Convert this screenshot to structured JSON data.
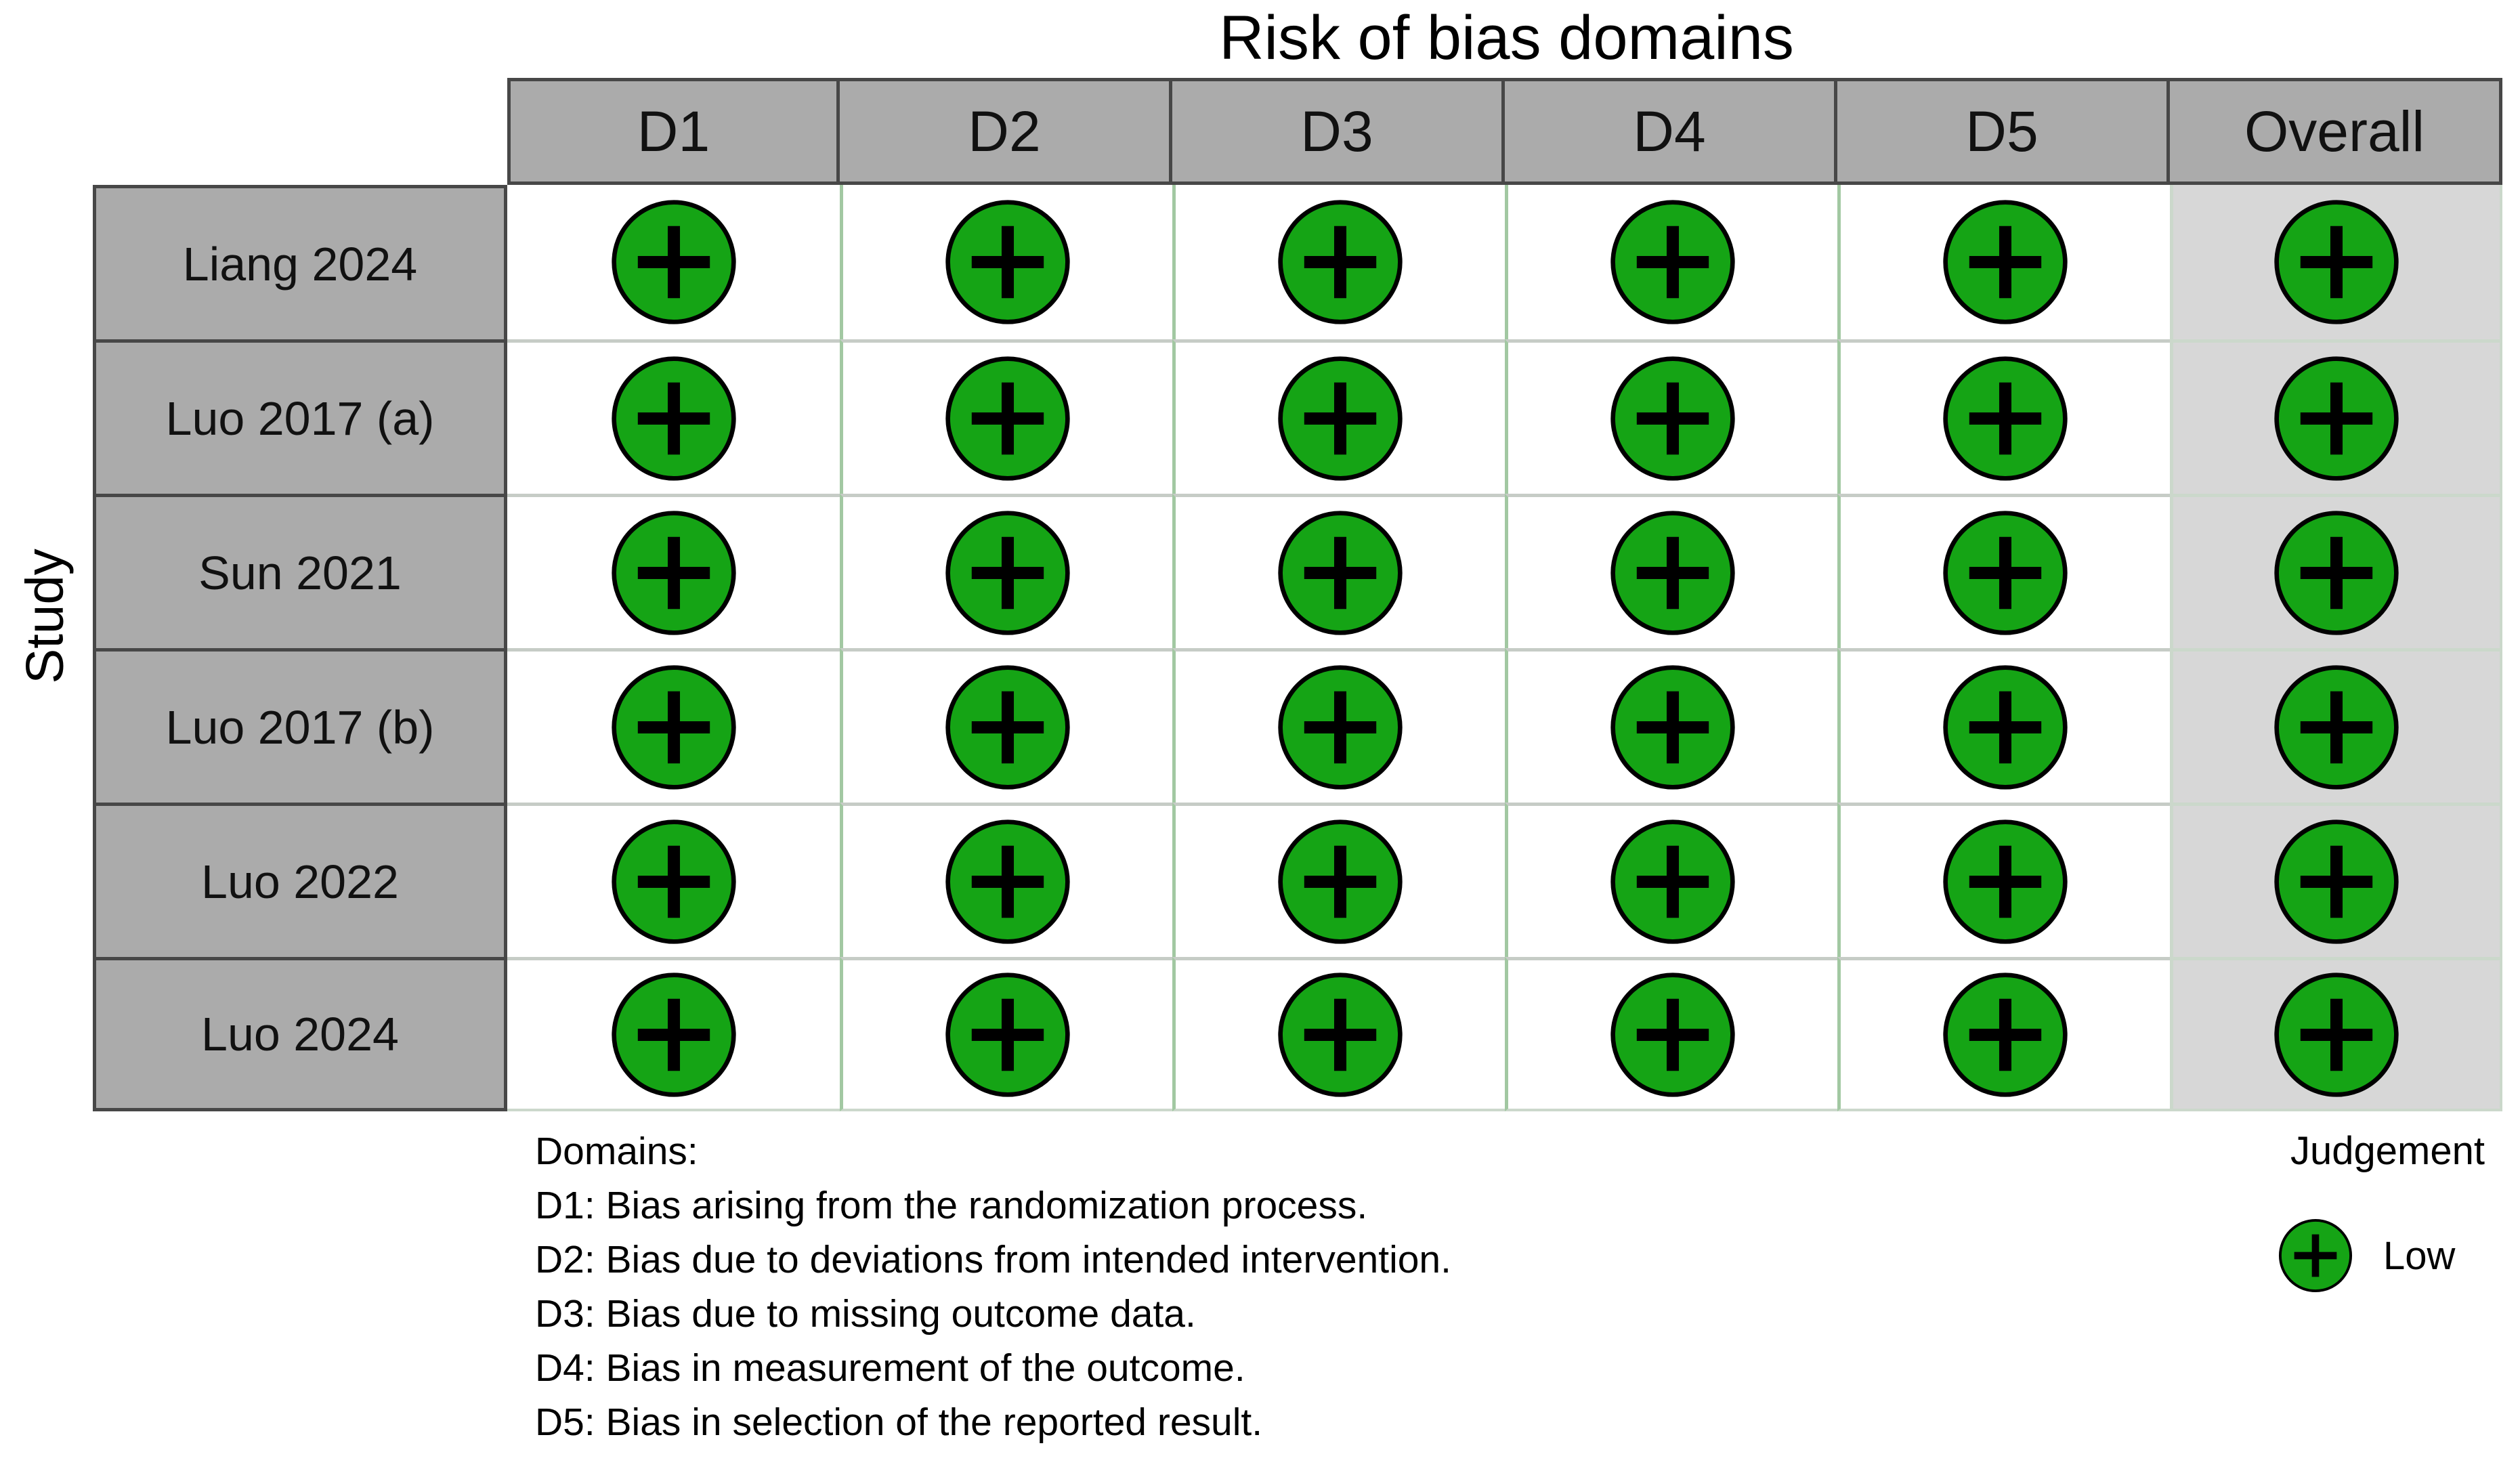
{
  "title": "Risk of bias domains",
  "axis_label": "Study",
  "table": {
    "columns": [
      "D1",
      "D2",
      "D3",
      "D4",
      "D5",
      "Overall"
    ],
    "studies": [
      "Liang 2024",
      "Luo 2017 (a)",
      "Sun 2021",
      "Luo 2017 (b)",
      "Luo 2022",
      "Luo 2024"
    ],
    "judgements": [
      [
        "Low",
        "Low",
        "Low",
        "Low",
        "Low",
        "Low"
      ],
      [
        "Low",
        "Low",
        "Low",
        "Low",
        "Low",
        "Low"
      ],
      [
        "Low",
        "Low",
        "Low",
        "Low",
        "Low",
        "Low"
      ],
      [
        "Low",
        "Low",
        "Low",
        "Low",
        "Low",
        "Low"
      ],
      [
        "Low",
        "Low",
        "Low",
        "Low",
        "Low",
        "Low"
      ],
      [
        "Low",
        "Low",
        "Low",
        "Low",
        "Low",
        "Low"
      ]
    ]
  },
  "legend_domains": {
    "heading": "Domains:",
    "definitions": [
      "D1: Bias arising from the randomization process.",
      "D2: Bias due to deviations from intended intervention.",
      "D3: Bias due to missing outcome data.",
      "D4: Bias in measurement of the outcome.",
      "D5: Bias in selection of the reported result."
    ]
  },
  "legend_judgement": {
    "title": "Judgement",
    "items": [
      {
        "label": "Low",
        "symbol": "plus-circle",
        "color": "#15A415"
      }
    ]
  },
  "colors": {
    "low_green": "#15A415",
    "header_bg": "#ABABAB",
    "label_bg": "#ABABAB",
    "overall_bg": "#D7D7D7",
    "border_dark": "#474747",
    "grid_vertical": "#A2C8A2",
    "grid_horizontal": "#C6CCC6",
    "table_edge": "#CBD8CB"
  },
  "chart_data": {
    "type": "heatmap",
    "title": "Risk of bias domains",
    "x_categories": [
      "D1",
      "D2",
      "D3",
      "D4",
      "D5",
      "Overall"
    ],
    "y_categories": [
      "Liang 2024",
      "Luo 2017 (a)",
      "Sun 2021",
      "Luo 2017 (b)",
      "Luo 2022",
      "Luo 2024"
    ],
    "values": [
      [
        "Low",
        "Low",
        "Low",
        "Low",
        "Low",
        "Low"
      ],
      [
        "Low",
        "Low",
        "Low",
        "Low",
        "Low",
        "Low"
      ],
      [
        "Low",
        "Low",
        "Low",
        "Low",
        "Low",
        "Low"
      ],
      [
        "Low",
        "Low",
        "Low",
        "Low",
        "Low",
        "Low"
      ],
      [
        "Low",
        "Low",
        "Low",
        "Low",
        "Low",
        "Low"
      ],
      [
        "Low",
        "Low",
        "Low",
        "Low",
        "Low",
        "Low"
      ]
    ],
    "ylabel": "Study",
    "legend_position": "bottom-right",
    "legend": [
      {
        "judgement": "Low",
        "marker": "green circle with plus"
      }
    ]
  }
}
